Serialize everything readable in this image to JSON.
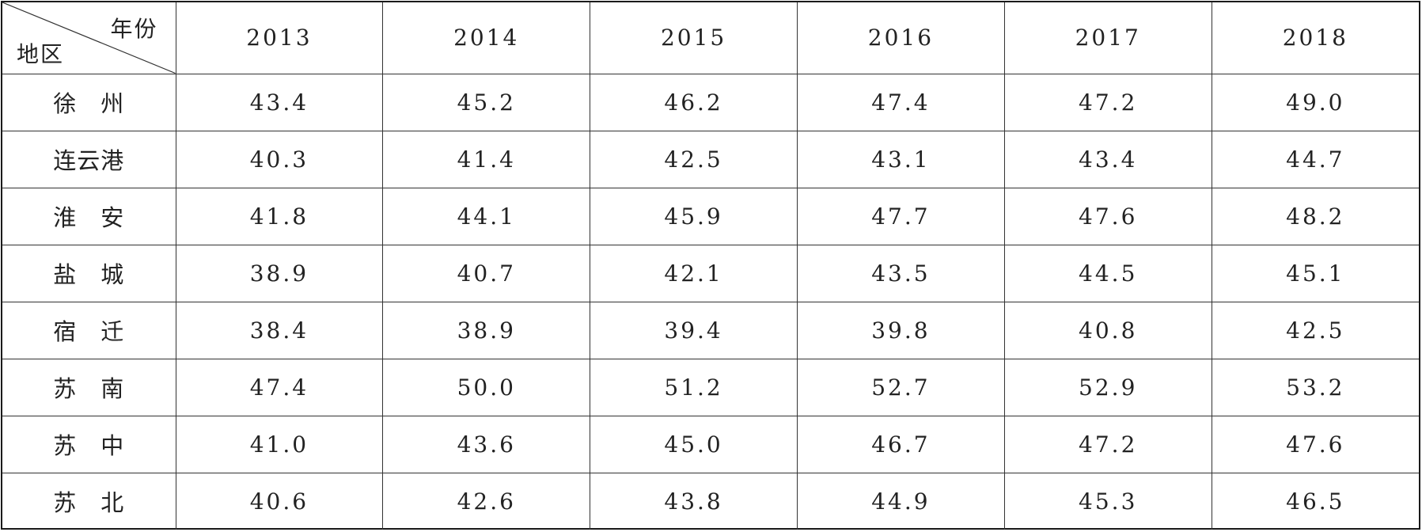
{
  "table": {
    "corner": {
      "column_header_label": "年份",
      "row_header_label": "地区"
    },
    "years": [
      "2013",
      "2014",
      "2015",
      "2016",
      "2017",
      "2018"
    ],
    "rows": [
      {
        "region": "徐　州",
        "values": [
          "43.4",
          "45.2",
          "46.2",
          "47.4",
          "47.2",
          "49.0"
        ]
      },
      {
        "region": "连云港",
        "values": [
          "40.3",
          "41.4",
          "42.5",
          "43.1",
          "43.4",
          "44.7"
        ]
      },
      {
        "region": "淮　安",
        "values": [
          "41.8",
          "44.1",
          "45.9",
          "47.7",
          "47.6",
          "48.2"
        ]
      },
      {
        "region": "盐　城",
        "values": [
          "38.9",
          "40.7",
          "42.1",
          "43.5",
          "44.5",
          "45.1"
        ]
      },
      {
        "region": "宿　迁",
        "values": [
          "38.4",
          "38.9",
          "39.4",
          "39.8",
          "40.8",
          "42.5"
        ]
      },
      {
        "region": "苏　南",
        "values": [
          "47.4",
          "50.0",
          "51.2",
          "52.7",
          "52.9",
          "53.2"
        ]
      },
      {
        "region": "苏　中",
        "values": [
          "41.0",
          "43.6",
          "45.0",
          "46.7",
          "47.2",
          "47.6"
        ]
      },
      {
        "region": "苏　北",
        "values": [
          "40.6",
          "42.6",
          "43.8",
          "44.9",
          "45.3",
          "46.5"
        ]
      }
    ]
  }
}
